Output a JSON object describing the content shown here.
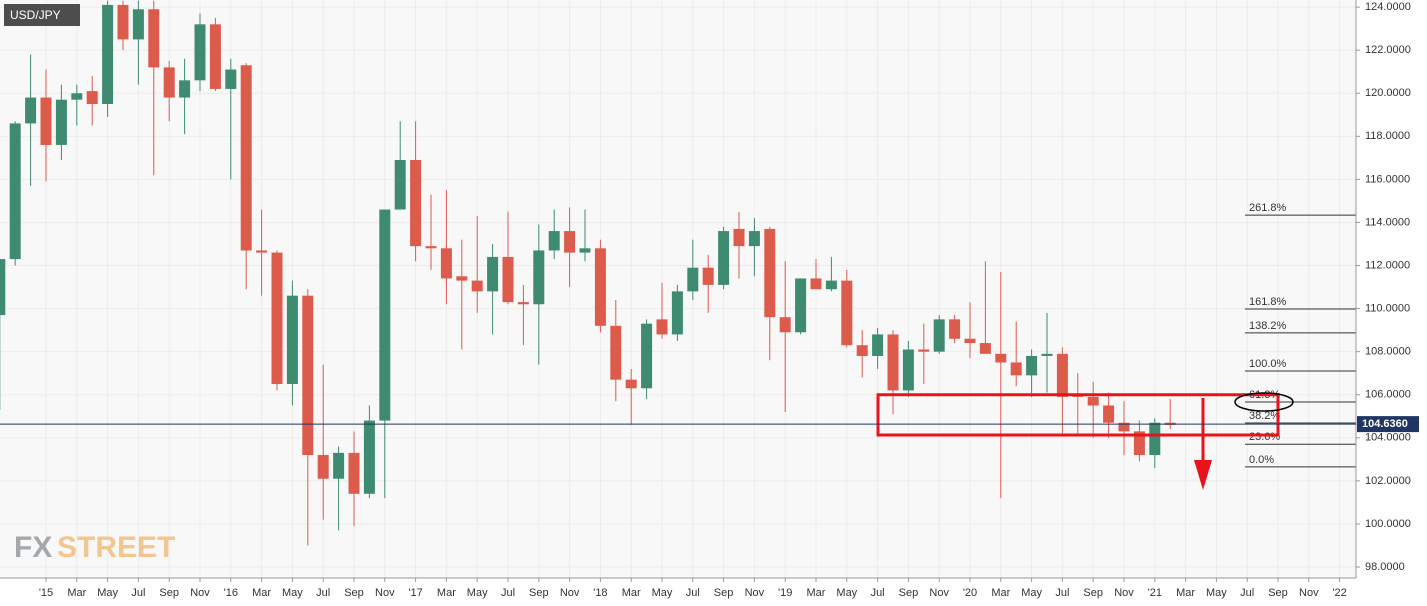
{
  "chart_data": {
    "type": "candlestick",
    "title": "USD/JPY",
    "watermark": [
      "FX",
      "STREET"
    ],
    "categories": [
      null,
      null,
      null,
      "'15",
      null,
      "Mar",
      null,
      "May",
      null,
      "Jul",
      null,
      "Sep",
      null,
      "Nov",
      null,
      "'16",
      null,
      "Mar",
      null,
      "May",
      null,
      "Jul",
      null,
      "Sep",
      null,
      "Nov",
      null,
      "'17",
      null,
      "Mar",
      null,
      "May",
      null,
      "Jul",
      null,
      "Sep",
      null,
      "Nov",
      null,
      "'18",
      null,
      "Mar",
      null,
      "May",
      null,
      "Jul",
      null,
      "Sep",
      null,
      "Nov",
      null,
      "'19",
      null,
      "Mar",
      null,
      "May",
      null,
      "Jul",
      null,
      "Sep",
      null,
      "Nov",
      null,
      "'20",
      null,
      "Mar",
      null,
      "May",
      null,
      "Jul",
      null,
      "Sep",
      null,
      "Nov",
      null,
      "'21",
      null,
      "Mar",
      null,
      "May",
      null,
      "Jul",
      null,
      "Sep",
      null,
      "Nov",
      null,
      "'22"
    ],
    "open": [
      109.7,
      112.3,
      118.6,
      119.8,
      117.6,
      119.7,
      120.1,
      119.5,
      124.1,
      122.5,
      123.9,
      121.2,
      119.8,
      120.6,
      123.2,
      120.2,
      121.3,
      112.7,
      112.6,
      106.5,
      110.6,
      103.2,
      102.1,
      103.3,
      101.4,
      104.8,
      114.6,
      116.9,
      112.9,
      112.8,
      111.5,
      111.3,
      110.8,
      112.4,
      110.3,
      110.2,
      112.7,
      113.6,
      112.6,
      112.8,
      109.2,
      106.7,
      106.3,
      109.5,
      108.8,
      110.8,
      111.9,
      111.1,
      113.7,
      112.9,
      113.7,
      109.6,
      108.9,
      111.4,
      110.9,
      111.3,
      108.3,
      107.8,
      108.8,
      106.2,
      108.1,
      108.0,
      109.5,
      108.6,
      108.4,
      107.9,
      107.5,
      106.9,
      107.8,
      107.9,
      106.0,
      105.9,
      105.5,
      104.7,
      104.3,
      103.2,
      104.7,
      null,
      null,
      null,
      null,
      null,
      null,
      null,
      null,
      null,
      null,
      null
    ],
    "high": [
      112.3,
      118.7,
      121.8,
      121.1,
      120.4,
      120.4,
      120.8,
      124.3,
      124.3,
      124.3,
      124.3,
      121.5,
      121.6,
      123.7,
      123.5,
      121.6,
      121.4,
      114.6,
      112.7,
      111.3,
      110.9,
      107.4,
      103.6,
      104.3,
      105.5,
      114.6,
      118.7,
      118.7,
      115.3,
      115.5,
      113.2,
      114.3,
      113.0,
      114.5,
      111.1,
      113.9,
      114.6,
      114.7,
      114.6,
      113.2,
      110.4,
      107.2,
      109.5,
      111.2,
      111.1,
      113.2,
      112.5,
      113.8,
      114.5,
      114.2,
      113.8,
      112.2,
      111.4,
      112.3,
      112.4,
      111.8,
      109.0,
      109.1,
      109.0,
      108.5,
      109.3,
      109.7,
      109.7,
      110.3,
      112.2,
      111.7,
      109.4,
      108.1,
      109.8,
      108.2,
      107.0,
      106.6,
      106.1,
      105.7,
      104.8,
      104.9,
      105.8,
      null,
      null,
      null,
      null,
      null,
      null,
      null,
      null,
      null,
      null,
      null
    ],
    "low": [
      105.3,
      112.0,
      115.7,
      115.9,
      116.9,
      118.5,
      118.5,
      118.9,
      122.0,
      120.4,
      116.2,
      118.7,
      118.1,
      120.1,
      120.1,
      116.0,
      110.9,
      110.6,
      106.2,
      105.5,
      99.0,
      100.2,
      99.7,
      99.9,
      101.2,
      101.2,
      114.6,
      112.2,
      111.8,
      110.2,
      108.1,
      109.8,
      108.8,
      110.2,
      108.3,
      107.4,
      112.3,
      111.0,
      112.2,
      108.9,
      105.7,
      104.6,
      105.8,
      108.6,
      108.5,
      110.4,
      109.8,
      110.9,
      111.4,
      111.5,
      107.6,
      105.2,
      108.8,
      110.9,
      110.8,
      108.2,
      106.8,
      107.2,
      105.1,
      105.9,
      106.5,
      107.9,
      108.4,
      107.7,
      107.9,
      101.2,
      106.4,
      105.9,
      106.1,
      104.2,
      104.2,
      104.0,
      104.0,
      103.2,
      102.9,
      102.6,
      104.4,
      null,
      null,
      null,
      null,
      null,
      null,
      null,
      null,
      null,
      null,
      null
    ],
    "close": [
      112.3,
      118.6,
      119.8,
      117.6,
      119.7,
      120.0,
      119.5,
      124.1,
      122.5,
      123.9,
      121.2,
      119.8,
      120.6,
      123.2,
      120.2,
      121.1,
      112.7,
      112.6,
      106.5,
      110.6,
      103.2,
      102.1,
      103.3,
      101.4,
      104.8,
      114.6,
      116.9,
      112.9,
      112.8,
      111.4,
      111.3,
      110.8,
      112.4,
      110.3,
      110.2,
      112.7,
      113.6,
      112.6,
      112.8,
      109.2,
      106.7,
      106.3,
      109.3,
      108.8,
      110.8,
      111.9,
      111.1,
      113.6,
      112.9,
      113.6,
      109.6,
      108.9,
      111.4,
      110.9,
      111.3,
      108.3,
      107.8,
      108.8,
      106.2,
      108.1,
      108.0,
      109.5,
      108.6,
      108.4,
      107.9,
      107.5,
      106.9,
      107.8,
      107.9,
      105.9,
      105.9,
      105.5,
      104.7,
      104.3,
      103.2,
      104.7,
      104.6,
      null,
      null,
      null,
      null,
      null,
      null,
      null,
      null,
      null,
      null,
      null
    ],
    "up_color": "#3e8b72",
    "down_color": "#dd5b4b",
    "ylim": [
      97.49,
      124.33
    ],
    "yticks": [
      {
        "value": 98,
        "label": "98.0000"
      },
      {
        "value": 100,
        "label": "100.0000"
      },
      {
        "value": 102,
        "label": "102.0000"
      },
      {
        "value": 104,
        "label": "104.0000"
      },
      {
        "value": 106,
        "label": "106.0000"
      },
      {
        "value": 108,
        "label": "108.0000"
      },
      {
        "value": 110,
        "label": "110.0000"
      },
      {
        "value": 112,
        "label": "112.0000"
      },
      {
        "value": 114,
        "label": "114.0000"
      },
      {
        "value": 116,
        "label": "116.0000"
      },
      {
        "value": 118,
        "label": "118.0000"
      },
      {
        "value": 120,
        "label": "120.0000"
      },
      {
        "value": 122,
        "label": "122.0000"
      },
      {
        "value": 124,
        "label": "124.0000"
      }
    ],
    "grid": true,
    "last_price": {
      "value": 104.636,
      "label": "104.6360"
    },
    "fib_levels": [
      {
        "label": "261.8%",
        "price": 114.34
      },
      {
        "label": "161.8%",
        "price": 109.98
      },
      {
        "label": "138.2%",
        "price": 108.87
      },
      {
        "label": "100.0%",
        "price": 107.1
      },
      {
        "label": "61.8%",
        "price": 105.66
      },
      {
        "label": "38.2%",
        "price": 104.69
      },
      {
        "label": "23.6%",
        "price": 103.7
      },
      {
        "label": "0.0%",
        "price": 102.65
      }
    ],
    "zone": {
      "top": 106.0,
      "bottom": 104.13
    }
  }
}
